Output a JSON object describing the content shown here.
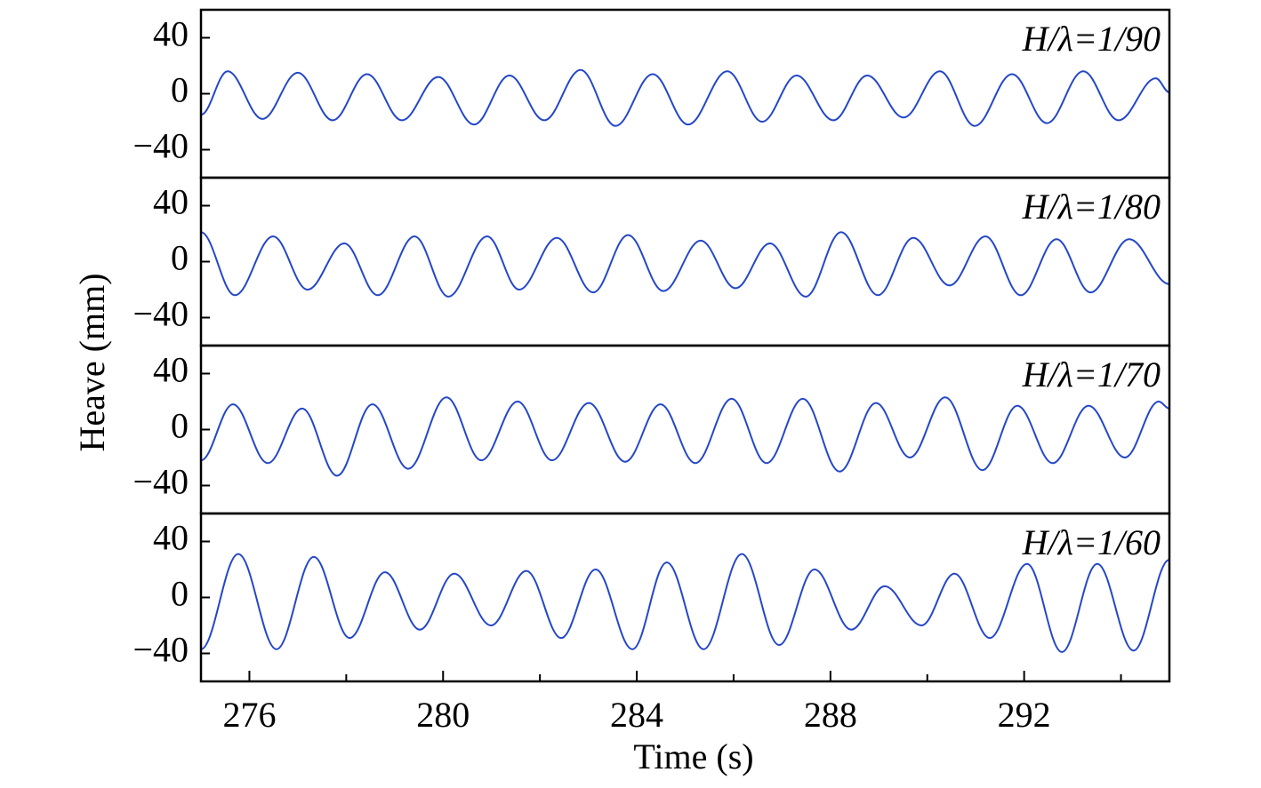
{
  "chart_data": {
    "type": "line",
    "xlabel": "Time (s)",
    "ylabel": "Heave (mm)",
    "xlim": [
      275,
      295
    ],
    "xticks": [
      276,
      280,
      284,
      288,
      292
    ],
    "xminor_ticks": [
      278,
      282,
      286,
      290,
      294
    ],
    "panels": [
      {
        "annotation": "H/λ=1/90",
        "color": "#2447c8",
        "ylim": [
          -60,
          60
        ],
        "yticks": [
          {
            "value": -40,
            "label": "−40"
          },
          0,
          40
        ],
        "x": [
          275.0,
          275.55,
          276.27,
          277.0,
          277.72,
          278.43,
          279.15,
          279.9,
          280.64,
          281.37,
          282.09,
          282.84,
          283.56,
          284.33,
          285.06,
          285.87,
          286.59,
          287.3,
          288.06,
          288.76,
          289.51,
          290.26,
          290.98,
          291.75,
          292.47,
          293.22,
          293.95,
          294.72,
          295.0
        ],
        "values": [
          -15,
          16,
          -18,
          15,
          -19,
          14,
          -19,
          12,
          -22,
          13,
          -19,
          17,
          -23,
          14,
          -22,
          16,
          -20,
          13,
          -19,
          13,
          -17,
          16,
          -23,
          14,
          -21,
          16,
          -19,
          11,
          1
        ]
      },
      {
        "annotation": "H/λ=1/80",
        "color": "#2447c8",
        "ylim": [
          -60,
          60
        ],
        "yticks": [
          {
            "value": -40,
            "label": "−40"
          },
          0,
          40
        ],
        "x": [
          275.0,
          275.7,
          276.49,
          277.2,
          277.96,
          278.65,
          279.41,
          280.11,
          280.91,
          281.57,
          282.35,
          283.1,
          283.82,
          284.55,
          285.32,
          286.04,
          286.75,
          287.49,
          288.22,
          288.98,
          289.71,
          290.46,
          291.2,
          291.93,
          292.67,
          293.37,
          294.17,
          295.0
        ],
        "values": [
          21,
          -24,
          18,
          -20,
          13,
          -24,
          18,
          -25,
          18,
          -20,
          17,
          -22,
          19,
          -21,
          15,
          -19,
          13,
          -25,
          21,
          -24,
          17,
          -17,
          18,
          -24,
          16,
          -22,
          16,
          -16
        ]
      },
      {
        "annotation": "H/λ=1/70",
        "color": "#2447c8",
        "ylim": [
          -60,
          60
        ],
        "yticks": [
          {
            "value": -40,
            "label": "−40"
          },
          0,
          40
        ],
        "x": [
          275.0,
          275.66,
          276.38,
          277.09,
          277.81,
          278.54,
          279.28,
          280.07,
          280.79,
          281.54,
          282.25,
          283.01,
          283.76,
          284.49,
          285.21,
          285.96,
          286.68,
          287.43,
          288.19,
          288.94,
          289.64,
          290.37,
          291.14,
          291.86,
          292.59,
          293.33,
          294.08,
          294.78,
          295.0
        ],
        "values": [
          -22,
          18,
          -24,
          15,
          -33,
          18,
          -28,
          23,
          -22,
          20,
          -22,
          19,
          -23,
          18,
          -24,
          22,
          -24,
          22,
          -30,
          19,
          -20,
          23,
          -29,
          17,
          -24,
          17,
          -20,
          20,
          15
        ]
      },
      {
        "annotation": "H/λ=1/60",
        "color": "#2447c8",
        "ylim": [
          -60,
          60
        ],
        "yticks": [
          {
            "value": -40,
            "label": "−40"
          },
          0,
          40
        ],
        "x": [
          275.0,
          275.77,
          276.56,
          277.33,
          278.07,
          278.8,
          279.52,
          280.23,
          280.99,
          281.72,
          282.44,
          283.15,
          283.91,
          284.62,
          285.38,
          286.17,
          286.94,
          287.67,
          288.43,
          289.12,
          289.88,
          290.56,
          291.29,
          292.06,
          292.78,
          293.51,
          294.26,
          295.0
        ],
        "values": [
          -37,
          31,
          -37,
          29,
          -29,
          18,
          -23,
          17,
          -20,
          19,
          -29,
          20,
          -37,
          25,
          -37,
          31,
          -34,
          20,
          -23,
          8,
          -20,
          17,
          -29,
          24,
          -39,
          24,
          -38,
          27
        ]
      }
    ]
  }
}
